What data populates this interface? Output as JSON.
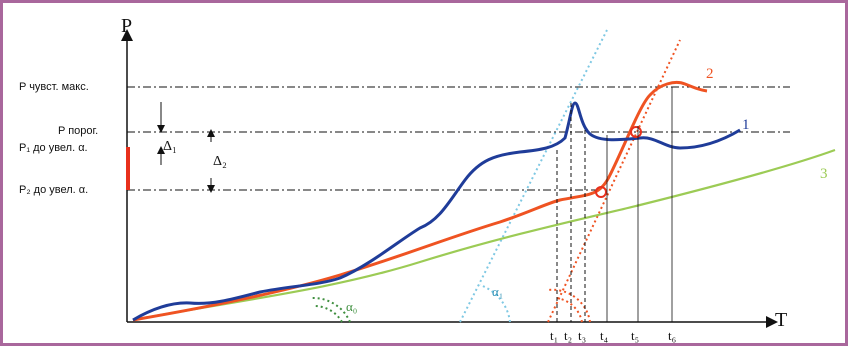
{
  "axes": {
    "y_label": "P",
    "x_label": "T"
  },
  "levels": {
    "p_max": "P чувст. макс.",
    "p_threshold": "P порог.",
    "p1": "P₁ до увел. α.",
    "p2": "P₂ до увел. α."
  },
  "deltas": {
    "d1": "Δ₁",
    "d2": "Δ₂"
  },
  "time_marks": [
    "t₁",
    "t₂",
    "t₃",
    "t₄",
    "t₅",
    "t₆"
  ],
  "curve_numbers": {
    "c1": "1",
    "c2": "2",
    "c3": "3"
  },
  "angles": {
    "a0": "α₀",
    "a1": "α₁"
  },
  "colors": {
    "frame": "#a9679c",
    "curve1": "#1f3c99",
    "curve2": "#ef5322",
    "curve3": "#9ccb55",
    "tangent1": "#7ec8e3",
    "marker": "#e8301c"
  }
}
